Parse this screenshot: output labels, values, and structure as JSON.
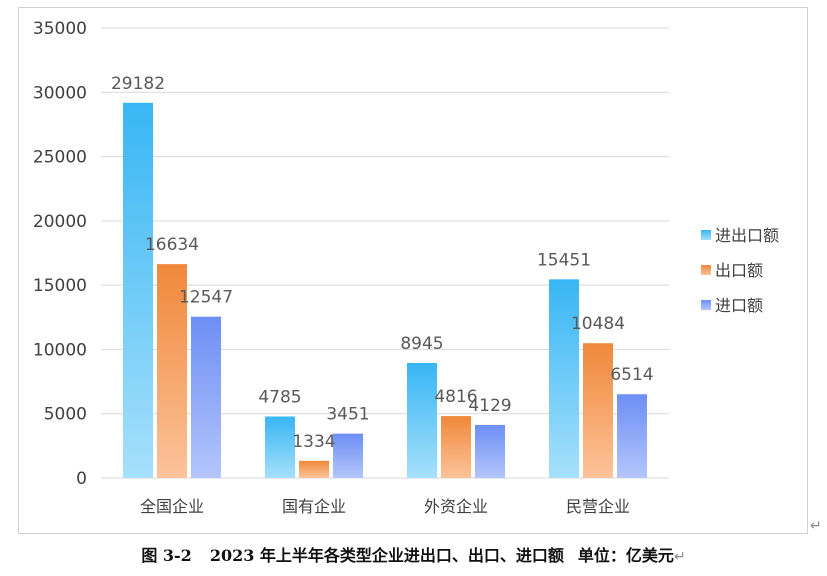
{
  "chart_data": {
    "type": "bar",
    "categories": [
      "全国企业",
      "国有企业",
      "外资企业",
      "民营企业"
    ],
    "series": [
      {
        "name": "进出口额",
        "values": [
          29182,
          4785,
          8945,
          15451
        ]
      },
      {
        "name": "出口额",
        "values": [
          16634,
          1334,
          4816,
          10484
        ]
      },
      {
        "name": "进口额",
        "values": [
          12547,
          3451,
          4129,
          6514
        ]
      }
    ],
    "ylim": [
      0,
      35000
    ],
    "yticks": [
      0,
      5000,
      10000,
      15000,
      20000,
      25000,
      30000,
      35000
    ],
    "grid": true,
    "legend_position": "right",
    "data_labels": true,
    "colors": {
      "进出口额": {
        "top": "#38b6f4",
        "bottom": "#a6e0fb"
      },
      "出口额": {
        "top": "#f0883a",
        "bottom": "#fcc39a"
      },
      "进口额": {
        "top": "#6d8ef5",
        "bottom": "#b4c6fb"
      }
    },
    "gridline_color": "#d9d9d9",
    "axis_label_color": "#404040",
    "data_label_color": "#595959"
  },
  "caption": {
    "number": "图 3-2",
    "title": "2023 年上半年各类型企业进出口、出口、进口额",
    "unit": "单位：亿美元",
    "return_mark": "↵"
  },
  "frame_return_mark": "↵"
}
